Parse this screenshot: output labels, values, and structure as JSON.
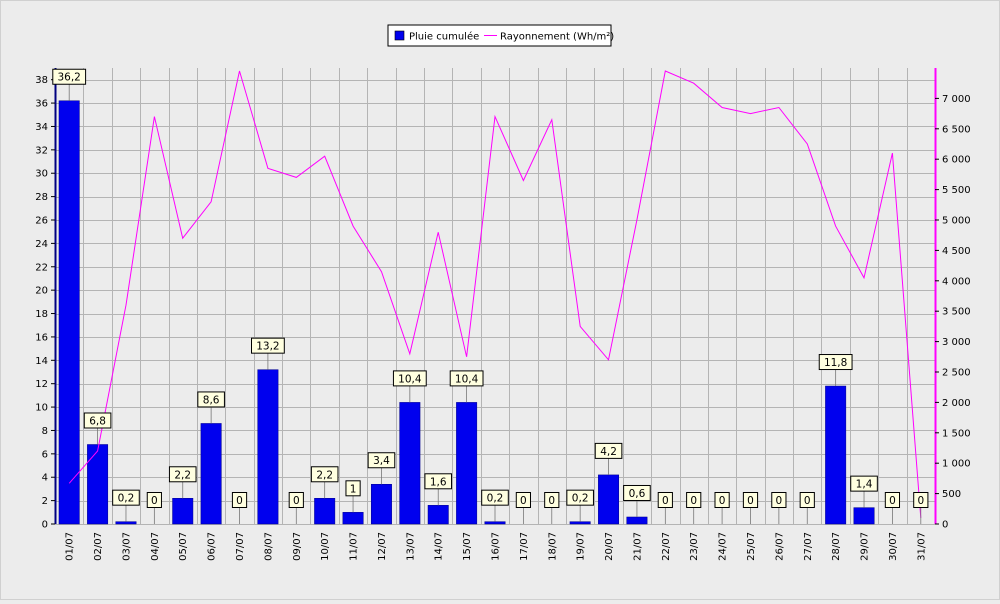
{
  "chart_data": {
    "type": "bar",
    "title": "",
    "legend_position": "top",
    "grid": true,
    "categories": [
      "01/07",
      "02/07",
      "03/07",
      "04/07",
      "05/07",
      "06/07",
      "07/07",
      "08/07",
      "09/07",
      "10/07",
      "11/07",
      "12/07",
      "13/07",
      "14/07",
      "15/07",
      "16/07",
      "17/07",
      "18/07",
      "19/07",
      "20/07",
      "21/07",
      "22/07",
      "23/07",
      "24/07",
      "25/07",
      "26/07",
      "27/07",
      "28/07",
      "29/07",
      "30/07",
      "31/07"
    ],
    "left_axis": {
      "min": 0,
      "max": 39,
      "ticks": [
        0,
        2,
        4,
        6,
        8,
        10,
        12,
        14,
        16,
        18,
        20,
        22,
        24,
        26,
        28,
        30,
        32,
        34,
        36,
        38
      ],
      "color": "#000080"
    },
    "right_axis": {
      "min": 0,
      "max": 7500,
      "ticks": [
        0,
        500,
        1000,
        1500,
        2000,
        2500,
        3000,
        3500,
        4000,
        4500,
        5000,
        5500,
        6000,
        6500,
        7000
      ],
      "tick_labels": [
        "0",
        "500",
        "1 000",
        "1 500",
        "2 000",
        "2 500",
        "3 000",
        "3 500",
        "4 000",
        "4 500",
        "5 000",
        "5 500",
        "6 000",
        "6 500",
        "7 000"
      ],
      "color": "#ff00ff"
    },
    "series": [
      {
        "name": "Pluie cumulée",
        "type": "bar",
        "axis": "left",
        "color": "#0000ee",
        "values": [
          36.2,
          6.8,
          0.2,
          0,
          2.2,
          8.6,
          0,
          13.2,
          0,
          2.2,
          1,
          3.4,
          10.4,
          1.6,
          10.4,
          0.2,
          0,
          0,
          0.2,
          4.2,
          0.6,
          0,
          0,
          0,
          0,
          0,
          0,
          11.8,
          1.4,
          0,
          0
        ],
        "labels": [
          "36,2",
          "6,8",
          "0,2",
          "0",
          "2,2",
          "8,6",
          "0",
          "13,2",
          "0",
          "2,2",
          "1",
          "3,4",
          "10,4",
          "1,6",
          "10,4",
          "0,2",
          "0",
          "0",
          "0,2",
          "4,2",
          "0,6",
          "0",
          "0",
          "0",
          "0",
          "0",
          "0",
          "11,8",
          "1,4",
          "0",
          "0"
        ]
      },
      {
        "name": "Rayonnement (Wh/m²)",
        "type": "line",
        "axis": "right",
        "color": "#ff00ff",
        "values": [
          670,
          1200,
          3600,
          6700,
          4700,
          5300,
          7450,
          5850,
          5700,
          6050,
          4900,
          4150,
          2800,
          4800,
          2750,
          6700,
          5650,
          6650,
          3250,
          2700,
          5000,
          7450,
          7250,
          6850,
          6750,
          6850,
          6250,
          4900,
          4050,
          6100,
          100
        ]
      }
    ]
  }
}
